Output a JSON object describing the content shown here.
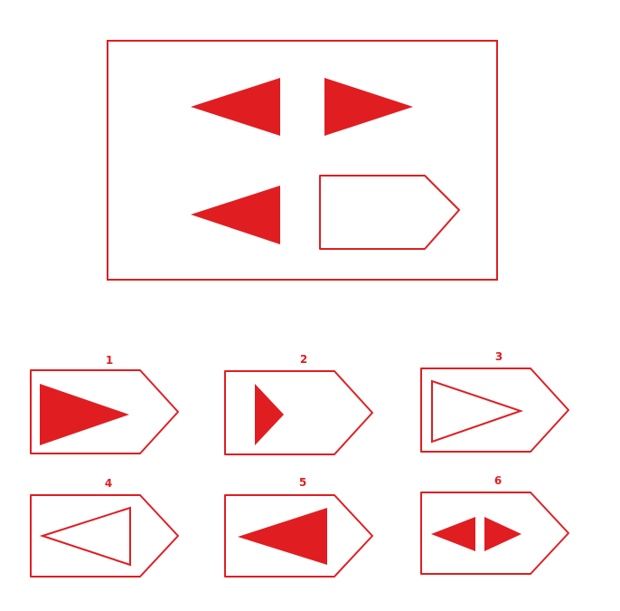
{
  "colors": {
    "accent": "#e01e22",
    "background": "#ffffff"
  },
  "puzzle": {
    "cells": [
      {
        "shape": "solid-triangle-left"
      },
      {
        "shape": "solid-triangle-right"
      },
      {
        "shape": "solid-triangle-left"
      },
      {
        "shape": "blank-pentagon-tag"
      }
    ]
  },
  "options": [
    {
      "label": "1",
      "content": "large-solid-triangle-right"
    },
    {
      "label": "2",
      "content": "small-solid-triangle-right"
    },
    {
      "label": "3",
      "content": "large-outline-triangle-right"
    },
    {
      "label": "4",
      "content": "outline-triangle-left"
    },
    {
      "label": "5",
      "content": "solid-triangle-left"
    },
    {
      "label": "6",
      "content": "two-small-solid-triangles-outward"
    }
  ]
}
